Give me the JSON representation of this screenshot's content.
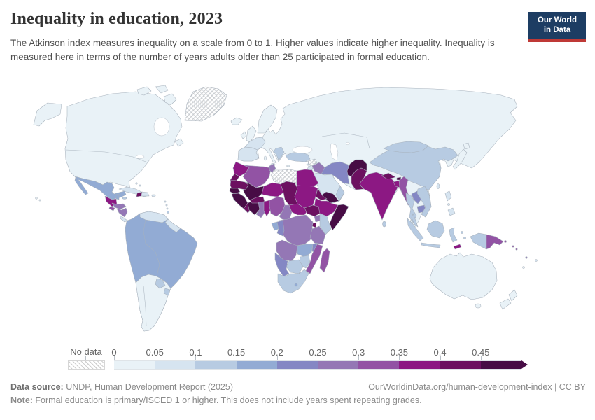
{
  "header": {
    "title": "Inequality in education, 2023",
    "subtitle": "The Atkinson index measures inequality on a scale from 0 to 1. Higher values indicate higher inequality. Inequality is measured here in terms of the number of years adults older than 25 participated in formal education.",
    "logo": {
      "line1": "Our World",
      "line2": "in Data",
      "bg_color": "#1d3d63",
      "accent_color": "#bf3936"
    }
  },
  "chart_data": {
    "type": "heatmap",
    "subtype": "world-choropleth",
    "title": "Inequality in education, 2023",
    "year": "2023",
    "metric": "Atkinson index of inequality in years of formal education (adults older than 25)",
    "legend": {
      "no_data_label": "No data",
      "ticks": [
        "0",
        "0.05",
        "0.1",
        "0.15",
        "0.2",
        "0.25",
        "0.3",
        "0.35",
        "0.4",
        "0.45"
      ],
      "bin_ranges": [
        "0-0.05",
        "0.05-0.1",
        "0.1-0.15",
        "0.15-0.2",
        "0.2-0.25",
        "0.25-0.3",
        "0.3-0.35",
        "0.35-0.4",
        "0.4-0.45",
        "0.45+"
      ],
      "colors": [
        "#e9f2f7",
        "#d6e4f0",
        "#b7cbe2",
        "#92abd4",
        "#8487c4",
        "#9477b5",
        "#9253a4",
        "#8c1883",
        "#6c1060",
        "#470c45"
      ],
      "open_ended_max": true,
      "no_data_pattern": "diagonal-hatch"
    },
    "countries": {
      "canada": 0,
      "united-states": 0,
      "greenland": null,
      "iceland": 0,
      "mexico": 3,
      "guatemala": 7,
      "belize": 3,
      "honduras": 5,
      "el-salvador": 6,
      "nicaragua": 5,
      "costa-rica": 1,
      "panama": 2,
      "cuba": 1,
      "jamaica": 2,
      "haiti": 8,
      "dominican-republic": 1,
      "puerto-rico": 1,
      "bahamas": 1,
      "lesser-antilles": 1,
      "trinidad-and-tobago": 2,
      "brazil": 3,
      "colombia": 3,
      "ecuador": 3,
      "peru": 3,
      "bolivia": 3,
      "venezuela": 1,
      "guyana": 1,
      "suriname": 1,
      "paraguay": 2,
      "uruguay": 2,
      "argentina": 0,
      "chile": 0,
      "russia": 0,
      "norway": 0,
      "sweden": 0,
      "finland": 0,
      "united-kingdom": 0,
      "ireland": 0,
      "germany": 0,
      "poland": 0,
      "ukraine": 0,
      "france": 1,
      "spain": 1,
      "portugal": 1,
      "italy": 0,
      "greece": 0,
      "western-balkans": 2,
      "turkey": 2,
      "cyprus": 1,
      "kazakhstan": 0,
      "uzbekistan": 0,
      "turkmenistan": 1,
      "morocco": 7,
      "western-sahara": 8,
      "algeria": 6,
      "tunisia": 5,
      "libya": null,
      "egypt": 7,
      "mauritania": 8,
      "mali": 9,
      "senegal": 9,
      "gambia": 9,
      "guinea": 9,
      "sierra-leone": 9,
      "liberia": 8,
      "cote-divoire": 9,
      "burkina-faso": 8,
      "ghana": 5,
      "togo": 7,
      "benin": 7,
      "niger": 7,
      "nigeria": 6,
      "chad": 8,
      "sudan": 7,
      "eritrea": 8,
      "djibouti": 7,
      "ethiopia": 7,
      "somalia": 9,
      "cameroon": 5,
      "central-african-republic": 7,
      "south-sudan": 8,
      "uganda": 5,
      "kenya": 2,
      "rwanda": 8,
      "burundi": 8,
      "democratic-republic-of-congo": 5,
      "congo": 4,
      "gabon": 3,
      "tanzania": 5,
      "angola": 5,
      "zambia": 3,
      "malawi": 4,
      "mozambique": 6,
      "zimbabwe": 2,
      "botswana": 2,
      "namibia": 4,
      "south-africa": 2,
      "lesotho": 3,
      "madagascar": 6,
      "syria": null,
      "iraq": 5,
      "jordan": 1,
      "israel": 0,
      "saudi-arabia": 1,
      "yemen": 9,
      "oman": 2,
      "united-arab-emirates": 1,
      "iran": 4,
      "afghanistan": 9,
      "pakistan": 8,
      "india": 7,
      "nepal": 8,
      "bhutan": 9,
      "bangladesh": 7,
      "sri-lanka": 2,
      "myanmar": 6,
      "thailand": 2,
      "laos": 4,
      "cambodia": 4,
      "vietnam": 2,
      "malaysia": 2,
      "indonesia": 2,
      "timor-leste": 7,
      "philippines": 1,
      "china": 2,
      "mongolia": 2,
      "japan": 0,
      "south-korea": 0,
      "north-korea": 1,
      "taiwan": 1,
      "papua-new-guinea": 6,
      "solomon-islands": 6,
      "vanuatu": 5,
      "fiji": 1,
      "new-caledonia": 0,
      "australia": 0,
      "new-zealand": 0
    }
  },
  "footer": {
    "source_label": "Data source:",
    "source_text": " UNDP, Human Development Report (2025)",
    "link_text": "OurWorldinData.org/human-development-index | CC BY",
    "note_label": "Note:",
    "note_text": " Formal education is primary/ISCED 1 or higher. This does not include years spent repeating grades."
  }
}
